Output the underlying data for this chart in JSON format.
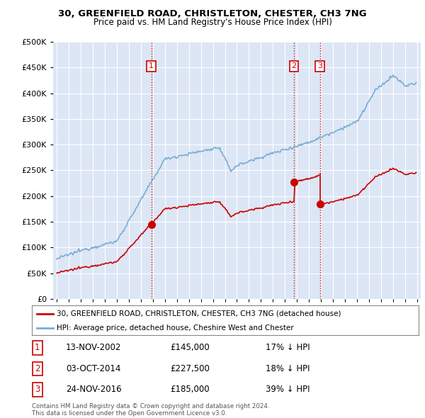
{
  "title": "30, GREENFIELD ROAD, CHRISTLETON, CHESTER, CH3 7NG",
  "subtitle": "Price paid vs. HM Land Registry's House Price Index (HPI)",
  "ytick_values": [
    0,
    50000,
    100000,
    150000,
    200000,
    250000,
    300000,
    350000,
    400000,
    450000,
    500000
  ],
  "xlim_start": 1994.7,
  "xlim_end": 2025.3,
  "ylim": [
    0,
    500000
  ],
  "hpi_color": "#7aadd4",
  "price_color": "#cc0000",
  "vline_color": "#cc0000",
  "transaction_dates": [
    2002.87,
    2014.75,
    2016.9
  ],
  "transaction_prices": [
    145000,
    227500,
    185000
  ],
  "transaction_labels": [
    "1",
    "2",
    "3"
  ],
  "legend_price_label": "30, GREENFIELD ROAD, CHRISTLETON, CHESTER, CH3 7NG (detached house)",
  "legend_hpi_label": "HPI: Average price, detached house, Cheshire West and Chester",
  "table_entries": [
    {
      "num": "1",
      "date": "13-NOV-2002",
      "price": "£145,000",
      "note": "17% ↓ HPI"
    },
    {
      "num": "2",
      "date": "03-OCT-2014",
      "price": "£227,500",
      "note": "18% ↓ HPI"
    },
    {
      "num": "3",
      "date": "24-NOV-2016",
      "price": "£185,000",
      "note": "39% ↓ HPI"
    }
  ],
  "footer": "Contains HM Land Registry data © Crown copyright and database right 2024.\nThis data is licensed under the Open Government Licence v3.0.",
  "plot_bg_color": "#dce6f5",
  "grid_color": "#ffffff"
}
